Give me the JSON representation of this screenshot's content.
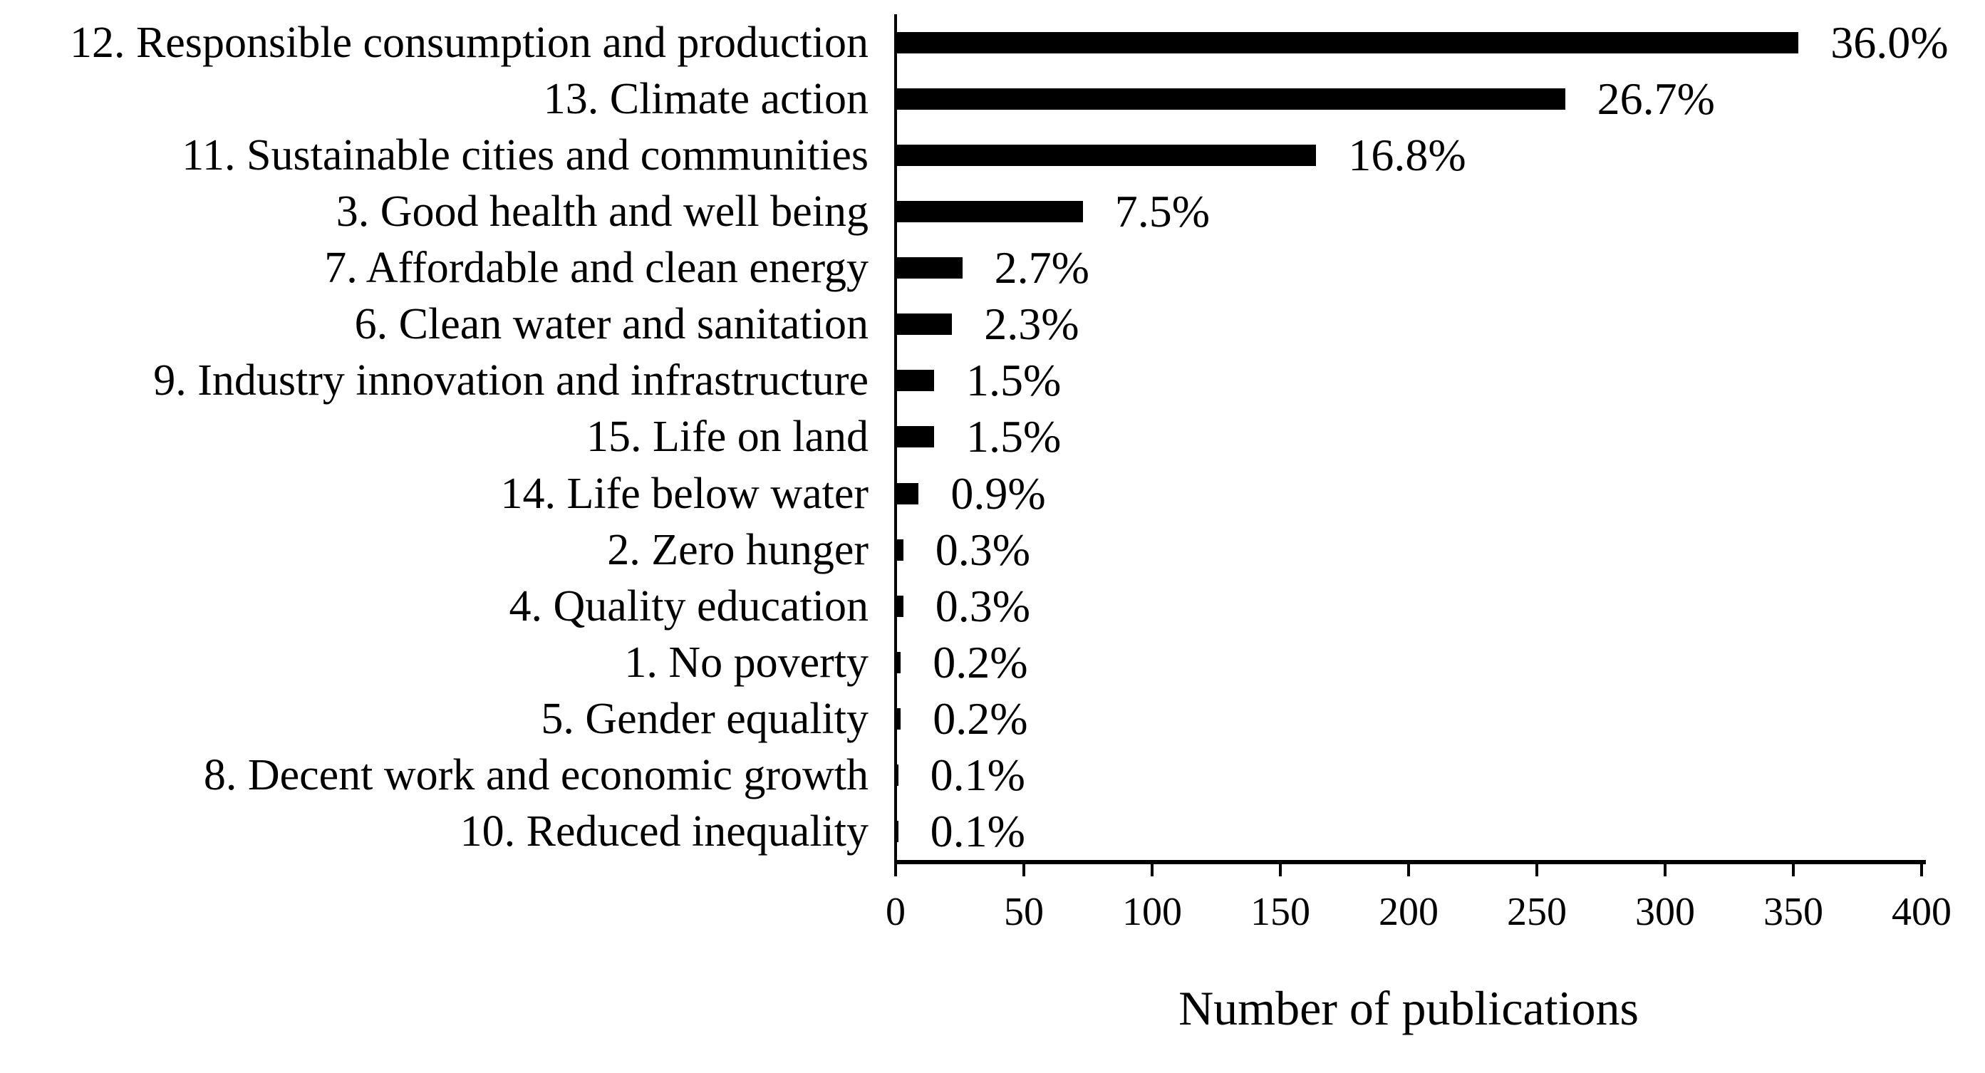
{
  "colors": {
    "bar": "#000000",
    "text": "#000000",
    "background": "#ffffff"
  },
  "chart_data": {
    "type": "bar",
    "orientation": "horizontal",
    "title": "",
    "xlabel": "Number of publications",
    "ylabel": "",
    "xlim": [
      0,
      400
    ],
    "xticks": [
      "0",
      "50",
      "100",
      "150",
      "200",
      "250",
      "300",
      "350",
      "400"
    ],
    "xtick_values": [
      0,
      50,
      100,
      150,
      200,
      250,
      300,
      350,
      400
    ],
    "grid": false,
    "legend": "none",
    "categories": [
      "12. Responsible consumption and production",
      "13. Climate action",
      "11. Sustainable cities and communities",
      "3. Good health and well being",
      "7. Affordable and clean energy",
      "6. Clean water and sanitation",
      "9. Industry innovation and infrastructure",
      "15. Life on land",
      "14. Life below water",
      "2. Zero hunger",
      "4. Quality education",
      "1. No poverty",
      "5. Gender equality",
      "8. Decent work and economic growth",
      "10. Reduced inequality"
    ],
    "values": [
      352,
      261,
      164,
      73,
      26,
      22,
      15,
      15,
      9,
      3,
      3,
      2,
      2,
      1,
      1
    ],
    "value_labels": [
      "36.0%",
      "26.7%",
      "16.8%",
      "7.5%",
      "2.7%",
      "2.3%",
      "1.5%",
      "1.5%",
      "0.9%",
      "0.3%",
      "0.3%",
      "0.2%",
      "0.2%",
      "0.1%",
      "0.1%"
    ]
  }
}
